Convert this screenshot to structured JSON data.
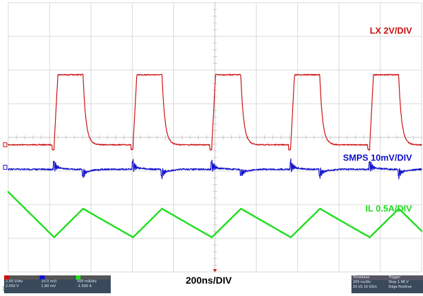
{
  "chart_data": {
    "type": "line",
    "timebase": "200ns/DIV",
    "grid": true,
    "grid_divisions": {
      "horizontal": 10,
      "vertical": 8
    },
    "x_unit": "ns",
    "x_range": [
      0,
      2000
    ],
    "switching_period_ns": 382,
    "series": [
      {
        "name": "LX 2V/DIV",
        "color": "#cc1111",
        "waveform": "square",
        "low_div": 4.22,
        "high_div": 2.14,
        "rise_times_ns": [
          222,
          604,
          985,
          1367,
          1749
        ],
        "high_duration_ns": 140,
        "rise_ns": 18,
        "fall_tau_ns": 14,
        "label_position": "top-right"
      },
      {
        "name": "SMPS 10mV/DIV",
        "color": "#1111cc",
        "waveform": "ripple",
        "baseline_div": 4.95,
        "spike_times_ns": [
          222,
          362,
          604,
          744,
          985,
          1126,
          1367,
          1508,
          1749,
          1890
        ],
        "label_position": "right"
      },
      {
        "name": "IL 0.5A/DIV",
        "color": "#22dd22",
        "waveform": "triangle",
        "peak_div": 6.12,
        "valley_div": 6.97,
        "peak_times_ns": [
          362,
          744,
          1126,
          1508,
          1890
        ],
        "valley_times_ns": [
          222,
          604,
          985,
          1367,
          1749
        ],
        "label_position": "right"
      }
    ]
  },
  "status_bar": {
    "ch1": {
      "scale": "2.00 V/div",
      "offset": "2.050 V"
    },
    "ch2": {
      "scale": "10.0 mV/",
      "offset": "1.80 mV"
    },
    "ch3": {
      "scale": "500 mA/div",
      "offset": "-1.500 A"
    },
    "timebase": {
      "header": "Timebase",
      "value": "200 ns/div",
      "extra": "20 kS  10 GS/s",
      "pos": "1 ns"
    },
    "trigger": {
      "header": "Trigger",
      "value": "Stop  1.96 V",
      "extra": "Edge  Positive"
    }
  }
}
